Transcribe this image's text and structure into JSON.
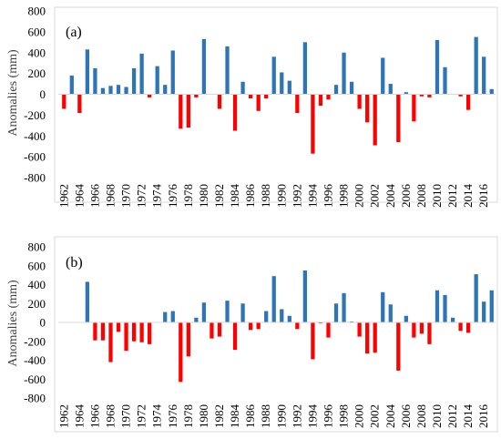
{
  "chart_data": [
    {
      "type": "bar",
      "panel_label": "(a)",
      "ylabel": "Anomalies (mm)",
      "ylim": [
        -800,
        800
      ],
      "yticks": [
        -800,
        -600,
        -400,
        -200,
        0,
        200,
        400,
        600,
        800
      ],
      "xtick_labels": [
        "1962",
        "1964",
        "1966",
        "1968",
        "1970",
        "1972",
        "1974",
        "1976",
        "1978",
        "1980",
        "1982",
        "1984",
        "1986",
        "1988",
        "1990",
        "1992",
        "1994",
        "1996",
        "1998",
        "2000",
        "2002",
        "2004",
        "2006",
        "2008",
        "2010",
        "2012",
        "2014",
        "2016"
      ],
      "grid": false,
      "colors": {
        "positive": "#2e75b6",
        "negative": "#ff0000"
      },
      "x": [
        1962,
        1963,
        1964,
        1965,
        1966,
        1967,
        1968,
        1969,
        1970,
        1971,
        1972,
        1973,
        1974,
        1975,
        1976,
        1977,
        1978,
        1979,
        1980,
        1981,
        1982,
        1983,
        1984,
        1985,
        1986,
        1987,
        1988,
        1989,
        1990,
        1991,
        1992,
        1993,
        1994,
        1995,
        1996,
        1997,
        1998,
        1999,
        2000,
        2001,
        2002,
        2003,
        2004,
        2005,
        2006,
        2007,
        2008,
        2009,
        2010,
        2011,
        2012,
        2013,
        2014,
        2015,
        2016,
        2017
      ],
      "values": [
        -140,
        180,
        -180,
        430,
        250,
        60,
        80,
        90,
        70,
        250,
        390,
        -30,
        270,
        90,
        420,
        -330,
        -320,
        -30,
        530,
        0,
        -140,
        460,
        -350,
        120,
        -40,
        -160,
        -40,
        360,
        210,
        130,
        -180,
        500,
        -570,
        -110,
        -50,
        90,
        400,
        120,
        -140,
        -270,
        -490,
        350,
        100,
        -460,
        20,
        -260,
        -20,
        -30,
        520,
        260,
        0,
        -20,
        -150,
        550,
        360,
        50
      ]
    },
    {
      "type": "bar",
      "panel_label": "(b)",
      "ylabel": "Anomalies (mm)",
      "ylim": [
        -800,
        800
      ],
      "yticks": [
        -800,
        -600,
        -400,
        -200,
        0,
        200,
        400,
        600,
        800
      ],
      "xtick_labels": [
        "1962",
        "1964",
        "1966",
        "1968",
        "1970",
        "1972",
        "1974",
        "1976",
        "1978",
        "1980",
        "1982",
        "1984",
        "1986",
        "1988",
        "1990",
        "1992",
        "1994",
        "1996",
        "1998",
        "2000",
        "2002",
        "2004",
        "2006",
        "2008",
        "2010",
        "2012",
        "2014",
        "2016"
      ],
      "grid": false,
      "colors": {
        "positive": "#2e75b6",
        "negative": "#ff0000"
      },
      "x": [
        1962,
        1963,
        1964,
        1965,
        1966,
        1967,
        1968,
        1969,
        1970,
        1971,
        1972,
        1973,
        1974,
        1975,
        1976,
        1977,
        1978,
        1979,
        1980,
        1981,
        1982,
        1983,
        1984,
        1985,
        1986,
        1987,
        1988,
        1989,
        1990,
        1991,
        1992,
        1993,
        1994,
        1995,
        1996,
        1997,
        1998,
        1999,
        2000,
        2001,
        2002,
        2003,
        2004,
        2005,
        2006,
        2007,
        2008,
        2009,
        2010,
        2011,
        2012,
        2013,
        2014,
        2015,
        2016,
        2017
      ],
      "values": [
        0,
        0,
        0,
        430,
        -190,
        -190,
        -420,
        -100,
        -300,
        -200,
        -210,
        -230,
        0,
        110,
        120,
        -630,
        -360,
        50,
        210,
        -170,
        -150,
        230,
        -290,
        200,
        -80,
        -70,
        120,
        490,
        140,
        70,
        -70,
        550,
        -390,
        -10,
        -160,
        200,
        310,
        10,
        -150,
        -330,
        -320,
        320,
        190,
        -510,
        70,
        -160,
        -120,
        -230,
        340,
        290,
        50,
        -90,
        -110,
        510,
        220,
        340
      ]
    }
  ]
}
